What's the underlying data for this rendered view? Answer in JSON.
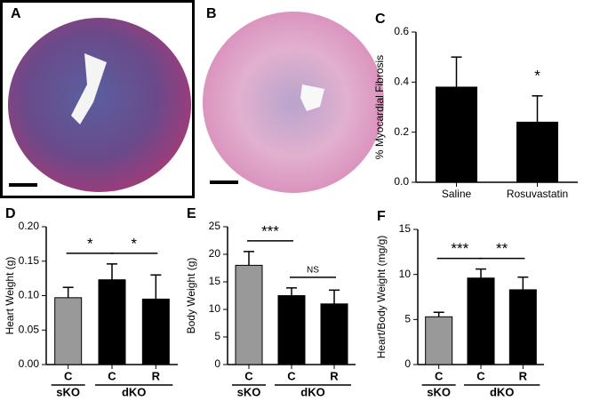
{
  "images": [
    {
      "label": "A"
    },
    {
      "label": "B"
    }
  ],
  "chart_data": [
    {
      "type": "bar",
      "panel": "C",
      "ylabel": "% Myocardial Fibrosis",
      "categories": [
        "Saline",
        "Rosuvastatin"
      ],
      "values": [
        0.38,
        0.24
      ],
      "errors": [
        0.12,
        0.105
      ],
      "colors": [
        "#000000",
        "#000000"
      ],
      "ylim": [
        0,
        0.6
      ],
      "yticks": [
        {
          "value": 0,
          "label": "0.0"
        },
        0.2,
        0.4,
        0.6
      ],
      "brackets": [
        {
          "from": 1,
          "to": 1,
          "label": "*"
        }
      ]
    },
    {
      "type": "bar",
      "panel": "D",
      "ylabel": "Heart Weight (g)",
      "categories": [
        "C",
        "C",
        "R"
      ],
      "groups": [
        {
          "label": "sKO",
          "count": 1
        },
        {
          "label": "dKO",
          "count": 2
        }
      ],
      "values": [
        0.097,
        0.123,
        0.095
      ],
      "errors": [
        0.015,
        0.023,
        0.035
      ],
      "colors": [
        "#999999",
        "#000000",
        "#000000"
      ],
      "ylim": [
        0,
        0.2
      ],
      "yticks": [
        {
          "value": 0,
          "label": "0.00"
        },
        {
          "value": 0.05,
          "label": "0.05"
        },
        {
          "value": 0.1,
          "label": "0.10"
        },
        {
          "value": 0.15,
          "label": "0.15"
        },
        {
          "value": 0.2,
          "label": "0.20"
        }
      ],
      "brackets": [
        {
          "from": 0,
          "to": 1,
          "label": "*"
        },
        {
          "from": 1,
          "to": 2,
          "label": "*"
        }
      ]
    },
    {
      "type": "bar",
      "panel": "E",
      "ylabel": "Body Weight (g)",
      "categories": [
        "C",
        "C",
        "R"
      ],
      "groups": [
        {
          "label": "sKO",
          "count": 1
        },
        {
          "label": "dKO",
          "count": 2
        }
      ],
      "values": [
        18,
        12.5,
        11
      ],
      "errors": [
        2.5,
        1.4,
        2.5
      ],
      "colors": [
        "#999999",
        "#000000",
        "#000000"
      ],
      "ylim": [
        0,
        25
      ],
      "yticks": [
        0,
        5,
        10,
        15,
        20,
        25
      ],
      "brackets": [
        {
          "from": 0,
          "to": 1,
          "label": "***"
        },
        {
          "from": 1,
          "to": 2,
          "label": "NS"
        }
      ]
    },
    {
      "type": "bar",
      "panel": "F",
      "ylabel": "Heart/Body Weight (mg/g)",
      "categories": [
        "C",
        "C",
        "R"
      ],
      "groups": [
        {
          "label": "sKO",
          "count": 1
        },
        {
          "label": "dKO",
          "count": 2
        }
      ],
      "values": [
        5.3,
        9.6,
        8.3
      ],
      "errors": [
        0.5,
        1.0,
        1.4
      ],
      "colors": [
        "#999999",
        "#000000",
        "#000000"
      ],
      "ylim": [
        0,
        15
      ],
      "yticks": [
        0,
        5,
        10,
        15
      ],
      "brackets": [
        {
          "from": 0,
          "to": 1,
          "label": "***"
        },
        {
          "from": 1,
          "to": 2,
          "label": "**"
        }
      ]
    }
  ]
}
